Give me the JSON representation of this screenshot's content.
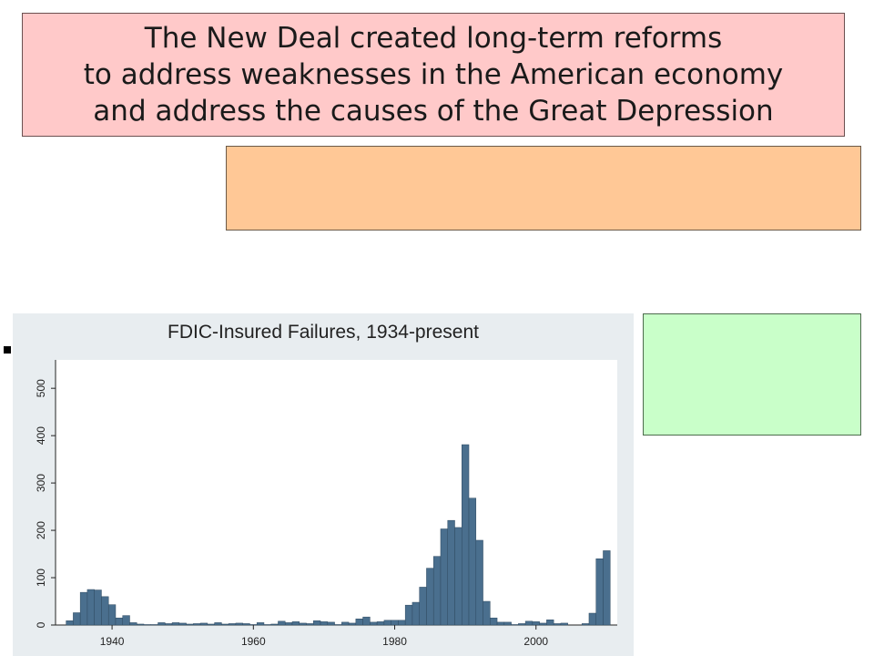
{
  "title": {
    "line1": "The New Deal created long-term reforms",
    "line2": "to address weaknesses in the American economy",
    "line3": "and address the causes of the Great Depression"
  },
  "colors": {
    "title_bg": "#ffc9c9",
    "orange_box_bg": "#ffc896",
    "green_box_bg": "#c9ffc9",
    "chart_bg": "#e8edf0",
    "bar_fill": "#4a6f8e"
  },
  "chart_data": {
    "type": "bar",
    "title": "FDIC-Insured Failures, 1934-present",
    "xlabel": "",
    "ylabel": "",
    "xlim": [
      1932,
      2011.5
    ],
    "ylim": [
      0,
      560
    ],
    "xticks": [
      1940,
      1960,
      1980,
      2000
    ],
    "yticks": [
      0,
      100,
      200,
      300,
      400,
      500
    ],
    "grid": false,
    "legend": "none",
    "x": [
      1934,
      1935,
      1936,
      1937,
      1938,
      1939,
      1940,
      1941,
      1942,
      1943,
      1944,
      1945,
      1946,
      1947,
      1948,
      1949,
      1950,
      1951,
      1952,
      1953,
      1954,
      1955,
      1956,
      1957,
      1958,
      1959,
      1960,
      1961,
      1962,
      1963,
      1964,
      1965,
      1966,
      1967,
      1968,
      1969,
      1970,
      1971,
      1972,
      1973,
      1974,
      1975,
      1976,
      1977,
      1978,
      1979,
      1980,
      1981,
      1982,
      1983,
      1984,
      1985,
      1986,
      1987,
      1988,
      1989,
      1990,
      1991,
      1992,
      1993,
      1994,
      1995,
      1996,
      1997,
      1998,
      1999,
      2000,
      2001,
      2002,
      2003,
      2004,
      2005,
      2006,
      2007,
      2008,
      2009,
      2010
    ],
    "values": [
      9,
      26,
      69,
      75,
      74,
      60,
      43,
      15,
      20,
      5,
      2,
      1,
      1,
      5,
      3,
      5,
      4,
      2,
      3,
      4,
      2,
      5,
      2,
      3,
      4,
      3,
      1,
      5,
      1,
      2,
      8,
      5,
      7,
      4,
      3,
      9,
      7,
      6,
      1,
      6,
      4,
      13,
      17,
      6,
      7,
      10,
      10,
      10,
      42,
      48,
      80,
      120,
      145,
      203,
      221,
      206,
      381,
      268,
      179,
      50,
      15,
      6,
      6,
      1,
      3,
      8,
      7,
      4,
      11,
      3,
      4,
      0,
      0,
      3,
      25,
      140,
      157
    ]
  }
}
